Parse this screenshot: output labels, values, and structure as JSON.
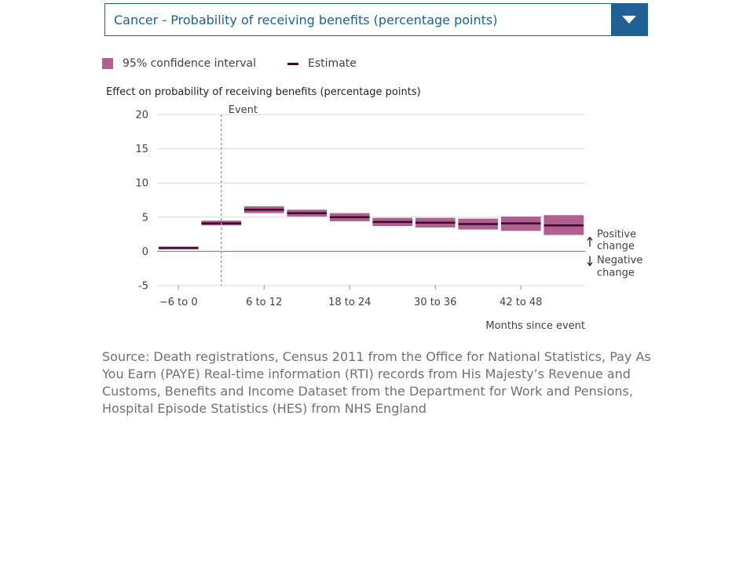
{
  "dropdown": {
    "selected": "Cancer - Probability of receiving benefits (percentage points)"
  },
  "legend": {
    "ci_label": "95% confidence interval",
    "estimate_label": "Estimate"
  },
  "colors": {
    "ci_fill": "#b0608e",
    "estimate": "#3d0a30",
    "accent": "#206095"
  },
  "chart_data": {
    "type": "bar",
    "ylabel": "Effect on probability of receiving benefits (percentage points)",
    "xlabel": "Months since event",
    "ylim": [
      -5,
      20
    ],
    "yticks": [
      20,
      15,
      10,
      5,
      0,
      -5
    ],
    "grid": true,
    "categories": [
      "-6 to 0",
      "0 to 6",
      "6 to 12",
      "12 to 18",
      "18 to 24",
      "24 to 30",
      "30 to 36",
      "36 to 42",
      "42 to 48",
      "48 to 54"
    ],
    "xtick_labels": [
      "−6 to 0",
      "6 to 12",
      "18 to 24",
      "30 to 36",
      "42 to 48"
    ],
    "xtick_categories": [
      "-6 to 0",
      "6 to 12",
      "18 to 24",
      "30 to 36",
      "42 to 48"
    ],
    "series": [
      {
        "name": "Estimate",
        "values": [
          0.5,
          4.1,
          6.1,
          5.6,
          5.0,
          4.3,
          4.2,
          4.0,
          4.1,
          3.8
        ]
      },
      {
        "name": "95% confidence interval",
        "lower": [
          0.3,
          3.8,
          5.6,
          5.1,
          4.4,
          3.7,
          3.5,
          3.2,
          3.0,
          2.4
        ],
        "upper": [
          0.7,
          4.5,
          6.6,
          6.1,
          5.6,
          4.9,
          4.9,
          4.8,
          5.1,
          5.3
        ]
      }
    ],
    "event": {
      "label": "Event",
      "position": "0 months"
    },
    "annotations": {
      "positive": [
        "Positive",
        "change"
      ],
      "negative": [
        "Negative",
        "change"
      ]
    }
  },
  "source": "Source: Death registrations, Census 2011 from the Office for National Statistics, Pay As You Earn (PAYE) Real-time information (RTI) records from His Majesty’s Revenue and Customs, Benefits and Income Dataset from the Department for Work and Pensions, Hospital Episode Statistics (HES) from NHS England"
}
